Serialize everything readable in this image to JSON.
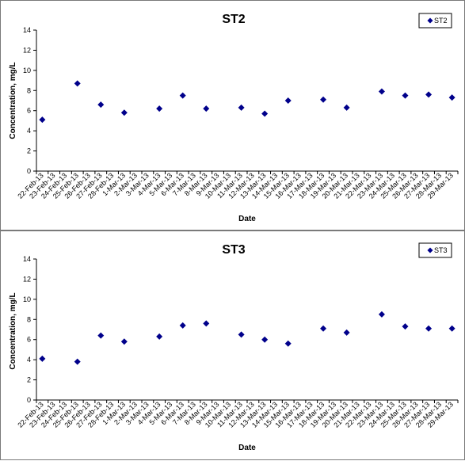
{
  "chart_data": [
    {
      "type": "scatter",
      "title": "ST2",
      "xlabel": "Date",
      "ylabel": "Concentration, mg/L",
      "ylim": [
        0,
        14
      ],
      "yticks": [
        0,
        2,
        4,
        6,
        8,
        10,
        12,
        14
      ],
      "grid": false,
      "legend": "top-right",
      "marker_color": "#00008B",
      "categories": [
        "22-Feb-13",
        "23-Feb-13",
        "24-Feb-13",
        "25-Feb-13",
        "26-Feb-13",
        "27-Feb-13",
        "28-Feb-13",
        "1-Mar-13",
        "2-Mar-13",
        "3-Mar-13",
        "4-Mar-13",
        "5-Mar-13",
        "6-Mar-13",
        "7-Mar-13",
        "8-Mar-13",
        "9-Mar-13",
        "10-Mar-13",
        "11-Mar-13",
        "12-Mar-13",
        "13-Mar-13",
        "14-Mar-13",
        "15-Mar-13",
        "16-Mar-13",
        "17-Mar-13",
        "18-Mar-13",
        "19-Mar-13",
        "20-Mar-13",
        "21-Mar-13",
        "22-Mar-13",
        "23-Mar-13",
        "24-Mar-13",
        "25-Mar-13",
        "26-Mar-13",
        "27-Mar-13",
        "28-Mar-13",
        "29-Mar-13"
      ],
      "series": [
        {
          "name": "ST2",
          "points": [
            {
              "x": "22-Feb-13",
              "y": 5.1
            },
            {
              "x": "25-Feb-13",
              "y": 8.7
            },
            {
              "x": "27-Feb-13",
              "y": 6.6
            },
            {
              "x": "1-Mar-13",
              "y": 5.8
            },
            {
              "x": "4-Mar-13",
              "y": 6.2
            },
            {
              "x": "6-Mar-13",
              "y": 7.5
            },
            {
              "x": "8-Mar-13",
              "y": 6.2
            },
            {
              "x": "11-Mar-13",
              "y": 6.3
            },
            {
              "x": "13-Mar-13",
              "y": 5.7
            },
            {
              "x": "15-Mar-13",
              "y": 7.0
            },
            {
              "x": "18-Mar-13",
              "y": 7.1
            },
            {
              "x": "20-Mar-13",
              "y": 6.3
            },
            {
              "x": "23-Mar-13",
              "y": 7.9
            },
            {
              "x": "25-Mar-13",
              "y": 7.5
            },
            {
              "x": "27-Mar-13",
              "y": 7.6
            },
            {
              "x": "29-Mar-13",
              "y": 7.3
            }
          ]
        }
      ]
    },
    {
      "type": "scatter",
      "title": "ST3",
      "xlabel": "Date",
      "ylabel": "Concentration, mg/L",
      "ylim": [
        0,
        14
      ],
      "yticks": [
        0,
        2,
        4,
        6,
        8,
        10,
        12,
        14
      ],
      "grid": false,
      "legend": "top-right",
      "marker_color": "#00008B",
      "categories": [
        "22-Feb-13",
        "23-Feb-13",
        "24-Feb-13",
        "25-Feb-13",
        "26-Feb-13",
        "27-Feb-13",
        "28-Feb-13",
        "1-Mar-13",
        "2-Mar-13",
        "3-Mar-13",
        "4-Mar-13",
        "5-Mar-13",
        "6-Mar-13",
        "7-Mar-13",
        "8-Mar-13",
        "9-Mar-13",
        "10-Mar-13",
        "11-Mar-13",
        "12-Mar-13",
        "13-Mar-13",
        "14-Mar-13",
        "15-Mar-13",
        "16-Mar-13",
        "17-Mar-13",
        "18-Mar-13",
        "19-Mar-13",
        "20-Mar-13",
        "21-Mar-13",
        "22-Mar-13",
        "23-Mar-13",
        "24-Mar-13",
        "25-Mar-13",
        "26-Mar-13",
        "27-Mar-13",
        "28-Mar-13",
        "29-Mar-13"
      ],
      "series": [
        {
          "name": "ST3",
          "points": [
            {
              "x": "22-Feb-13",
              "y": 4.1
            },
            {
              "x": "25-Feb-13",
              "y": 3.8
            },
            {
              "x": "27-Feb-13",
              "y": 6.4
            },
            {
              "x": "1-Mar-13",
              "y": 5.8
            },
            {
              "x": "4-Mar-13",
              "y": 6.3
            },
            {
              "x": "6-Mar-13",
              "y": 7.4
            },
            {
              "x": "8-Mar-13",
              "y": 7.6
            },
            {
              "x": "11-Mar-13",
              "y": 6.5
            },
            {
              "x": "13-Mar-13",
              "y": 6.0
            },
            {
              "x": "15-Mar-13",
              "y": 5.6
            },
            {
              "x": "18-Mar-13",
              "y": 7.1
            },
            {
              "x": "20-Mar-13",
              "y": 6.7
            },
            {
              "x": "23-Mar-13",
              "y": 8.5
            },
            {
              "x": "25-Mar-13",
              "y": 7.3
            },
            {
              "x": "27-Mar-13",
              "y": 7.1
            },
            {
              "x": "29-Mar-13",
              "y": 7.1
            }
          ]
        }
      ]
    }
  ]
}
